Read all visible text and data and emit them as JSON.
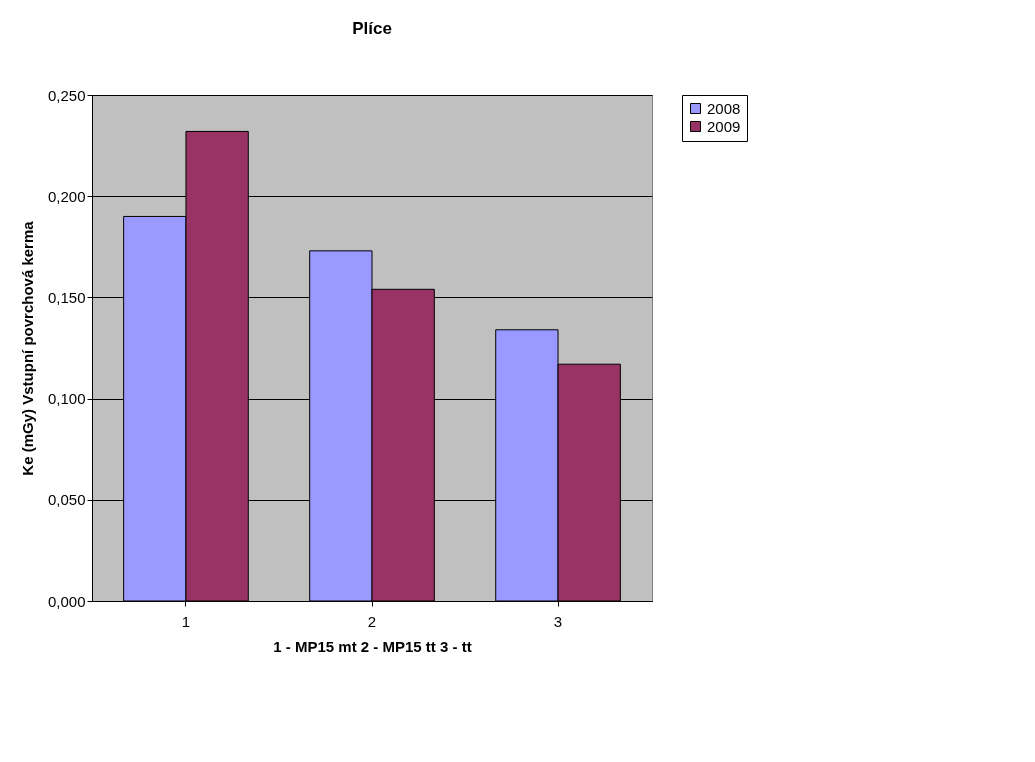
{
  "chart_data": {
    "type": "bar",
    "title": "Plíce",
    "xlabel": "1 - MP15 mt          2 - MP15 tt          3 - tt",
    "ylabel": "Ke (mGy) Vstupní povrchová kerma",
    "categories": [
      "1",
      "2",
      "3"
    ],
    "series": [
      {
        "name": "2008",
        "color": "#9999ff",
        "values": [
          0.19,
          0.173,
          0.134
        ]
      },
      {
        "name": "2009",
        "color": "#993366",
        "values": [
          0.232,
          0.154,
          0.117
        ]
      }
    ],
    "ylim": [
      0,
      0.25
    ],
    "yticks": [
      {
        "value": 0,
        "label": "0,000"
      },
      {
        "value": 0.05,
        "label": "0,050"
      },
      {
        "value": 0.1,
        "label": "0,100"
      },
      {
        "value": 0.15,
        "label": "0,150"
      },
      {
        "value": 0.2,
        "label": "0,200"
      },
      {
        "value": 0.25,
        "label": "0,250"
      }
    ],
    "grid": "y",
    "legend": "right"
  }
}
